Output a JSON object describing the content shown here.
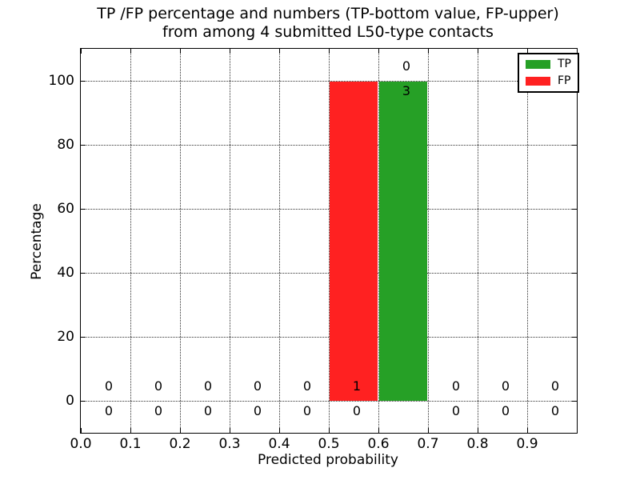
{
  "title": {
    "line1": "TP /FP percentage and numbers (TP-bottom value, FP-upper)",
    "line2": "from among 4 submitted L50-type contacts"
  },
  "axis": {
    "xlabel": "Predicted probability",
    "ylabel": "Percentage"
  },
  "chart_data": {
    "type": "bar",
    "title": "TP /FP percentage and numbers (TP-bottom value, FP-upper) from among 4 submitted L50-type contacts",
    "xlabel": "Predicted probability",
    "ylabel": "Percentage",
    "xlim": [
      0.0,
      1.0
    ],
    "ylim": [
      -10,
      110
    ],
    "grid": "dotted",
    "bin_width": 0.1,
    "bin_starts": [
      0.0,
      0.1,
      0.2,
      0.3,
      0.4,
      0.5,
      0.6,
      0.7,
      0.8,
      0.9
    ],
    "xtick_labels": [
      "0.0",
      "0.1",
      "0.2",
      "0.3",
      "0.4",
      "0.5",
      "0.6",
      "0.7",
      "0.8",
      "0.9"
    ],
    "ytick_values": [
      0,
      20,
      40,
      60,
      80,
      100
    ],
    "series": [
      {
        "name": "TP",
        "color": "#26a026",
        "percentages": [
          0,
          0,
          0,
          0,
          0,
          0,
          100,
          0,
          0,
          0
        ],
        "counts": [
          0,
          0,
          0,
          0,
          0,
          0,
          3,
          0,
          0,
          0
        ]
      },
      {
        "name": "FP",
        "color": "#ff2121",
        "percentages": [
          0,
          0,
          0,
          0,
          0,
          100,
          0,
          0,
          0,
          0
        ],
        "counts": [
          0,
          0,
          0,
          0,
          0,
          1,
          0,
          0,
          0,
          0
        ]
      }
    ],
    "annotation_rule": "per-bin counts: FP count on upper row, TP count on lower row, anchored at the top of the TP bar",
    "legend": {
      "position": "upper-right",
      "entries": [
        {
          "label": "TP",
          "color": "#26a026"
        },
        {
          "label": "FP",
          "color": "#ff2121"
        }
      ]
    }
  }
}
